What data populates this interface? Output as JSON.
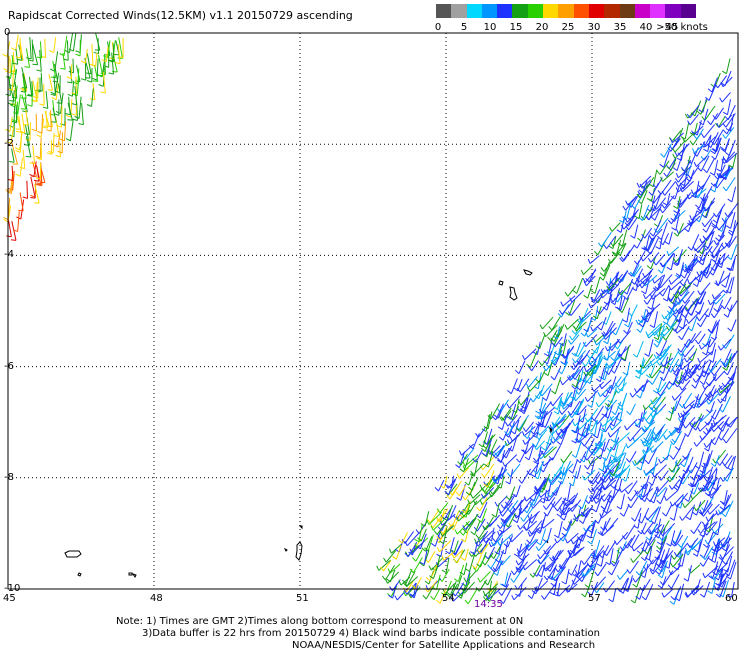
{
  "title": "Rapidscat Corrected Winds(12.5KM) v1.1 20150729 ascending",
  "legend": {
    "colors": [
      "#555555",
      "#a0a0a0",
      "#00d8ff",
      "#0096ff",
      "#1e32ff",
      "#14a014",
      "#28d000",
      "#ffd800",
      "#ffa000",
      "#ff5000",
      "#e00000",
      "#b42800",
      "#6e3c14",
      "#c800c8",
      "#e030ff",
      "#8000c0",
      "#5a0090"
    ],
    "labels": [
      {
        "text": "0",
        "pos": 0
      },
      {
        "text": "5",
        "pos": 1
      },
      {
        "text": "10",
        "pos": 2
      },
      {
        "text": "15",
        "pos": 3
      },
      {
        "text": "20",
        "pos": 4
      },
      {
        "text": "25",
        "pos": 5
      },
      {
        "text": "30",
        "pos": 6
      },
      {
        "text": "35",
        "pos": 7
      },
      {
        "text": "40",
        "pos": 8
      },
      {
        "text": "45",
        "pos": 9
      },
      {
        "text": ">50 knots",
        "pos": 10
      }
    ]
  },
  "map": {
    "lon_range": [
      45,
      60
    ],
    "lat_range": [
      -10,
      0
    ],
    "lon_ticks": [
      "45",
      "48",
      "51",
      "54",
      "57",
      "60"
    ],
    "lat_ticks": [
      "0",
      "-2",
      "-4",
      "-6",
      "-8",
      "-10"
    ],
    "grid": "dotted"
  },
  "time_label": "14:35",
  "notes": {
    "line1": "Note: 1) Times are GMT 2)Times along bottom correspond to measurement at 0N",
    "line2": "3)Data buffer is 22 hrs from 20150729 4) Black wind barbs indicate possible contamination",
    "line3": "NOAA/NESDIS/Center for Satellite Applications and Research"
  }
}
